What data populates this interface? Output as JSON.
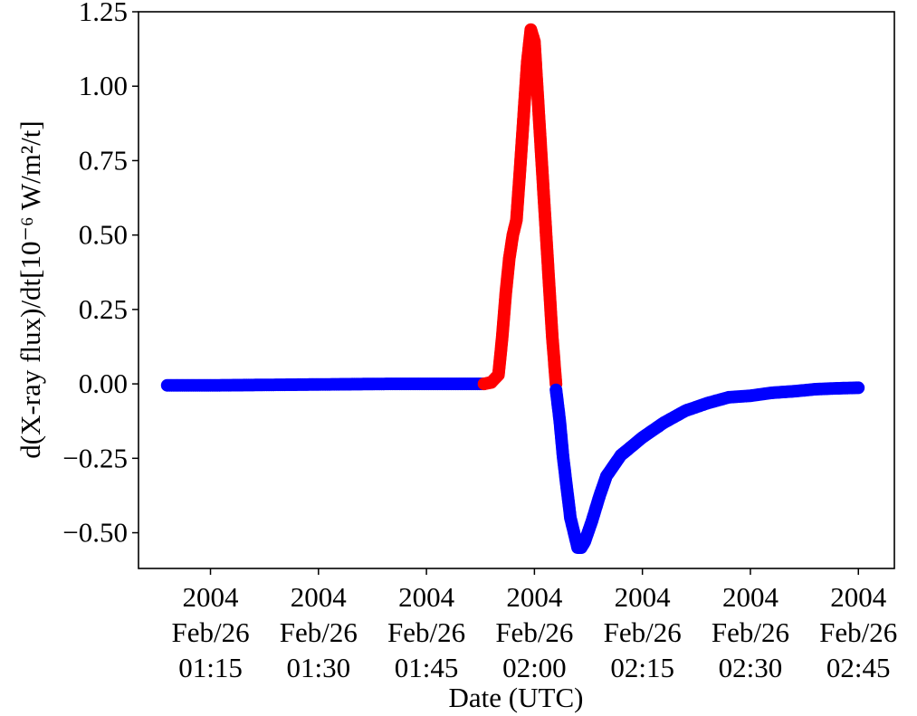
{
  "chart_data": {
    "type": "scatter",
    "title": "",
    "xlabel": "Date (UTC)",
    "ylabel": "d(X-ray flux)/dt[10⁻⁶ W/m²/t]",
    "ylim": [
      -0.62,
      1.25
    ],
    "xlim": [
      "2004-02-26 01:05",
      "2004-02-26 02:50"
    ],
    "grid": false,
    "legend": "none",
    "x_ticks": [
      {
        "year": "2004",
        "date": "Feb/26",
        "time": "01:15"
      },
      {
        "year": "2004",
        "date": "Feb/26",
        "time": "01:30"
      },
      {
        "year": "2004",
        "date": "Feb/26",
        "time": "01:45"
      },
      {
        "year": "2004",
        "date": "Feb/26",
        "time": "02:00"
      },
      {
        "year": "2004",
        "date": "Feb/26",
        "time": "02:15"
      },
      {
        "year": "2004",
        "date": "Feb/26",
        "time": "02:30"
      },
      {
        "year": "2004",
        "date": "Feb/26",
        "time": "02:45"
      }
    ],
    "y_ticks": [
      "−0.50",
      "−0.25",
      "0.00",
      "0.25",
      "0.50",
      "0.75",
      "1.00",
      "1.25"
    ],
    "y_tick_values": [
      -0.5,
      -0.25,
      0.0,
      0.25,
      0.5,
      0.75,
      1.0,
      1.25
    ],
    "series": [
      {
        "color": "#0000ff",
        "x": [
          "2004-02-26 01:09",
          "2004-02-26 01:15",
          "2004-02-26 01:20",
          "2004-02-26 01:25",
          "2004-02-26 01:30",
          "2004-02-26 01:35",
          "2004-02-26 01:40",
          "2004-02-26 01:45",
          "2004-02-26 01:50",
          "2004-02-26 01:53"
        ],
        "y": [
          -0.005,
          -0.005,
          -0.004,
          -0.003,
          -0.002,
          -0.001,
          0.0,
          0.0,
          0.0,
          0.0
        ]
      },
      {
        "color": "#ff0000",
        "x": [
          "2004-02-26 01:53",
          "2004-02-26 01:54",
          "2004-02-26 01:55",
          "2004-02-26 01:55:30",
          "2004-02-26 01:56",
          "2004-02-26 01:56:30",
          "2004-02-26 01:57",
          "2004-02-26 01:57:30",
          "2004-02-26 01:58",
          "2004-02-26 01:58:30",
          "2004-02-26 01:59",
          "2004-02-26 01:59:30",
          "2004-02-26 02:00",
          "2004-02-26 02:00:30",
          "2004-02-26 02:01",
          "2004-02-26 02:01:30",
          "2004-02-26 02:02",
          "2004-02-26 02:02:30",
          "2004-02-26 02:03"
        ],
        "y": [
          0.0,
          0.005,
          0.03,
          0.15,
          0.3,
          0.42,
          0.5,
          0.55,
          0.72,
          0.9,
          1.08,
          1.19,
          1.15,
          0.95,
          0.75,
          0.55,
          0.35,
          0.15,
          0.0
        ]
      },
      {
        "color": "#0000ff",
        "x": [
          "2004-02-26 02:03",
          "2004-02-26 02:03:30",
          "2004-02-26 02:04",
          "2004-02-26 02:05",
          "2004-02-26 02:06",
          "2004-02-26 02:06:30",
          "2004-02-26 02:07",
          "2004-02-26 02:08",
          "2004-02-26 02:09",
          "2004-02-26 02:10",
          "2004-02-26 02:12",
          "2004-02-26 02:15",
          "2004-02-26 02:18",
          "2004-02-26 02:21",
          "2004-02-26 02:24",
          "2004-02-26 02:27",
          "2004-02-26 02:30",
          "2004-02-26 02:33",
          "2004-02-26 02:36",
          "2004-02-26 02:39",
          "2004-02-26 02:42",
          "2004-02-26 02:45"
        ],
        "y": [
          -0.02,
          -0.12,
          -0.25,
          -0.45,
          -0.55,
          -0.55,
          -0.53,
          -0.46,
          -0.38,
          -0.31,
          -0.24,
          -0.18,
          -0.13,
          -0.09,
          -0.065,
          -0.045,
          -0.04,
          -0.03,
          -0.025,
          -0.018,
          -0.015,
          -0.013
        ]
      }
    ]
  }
}
